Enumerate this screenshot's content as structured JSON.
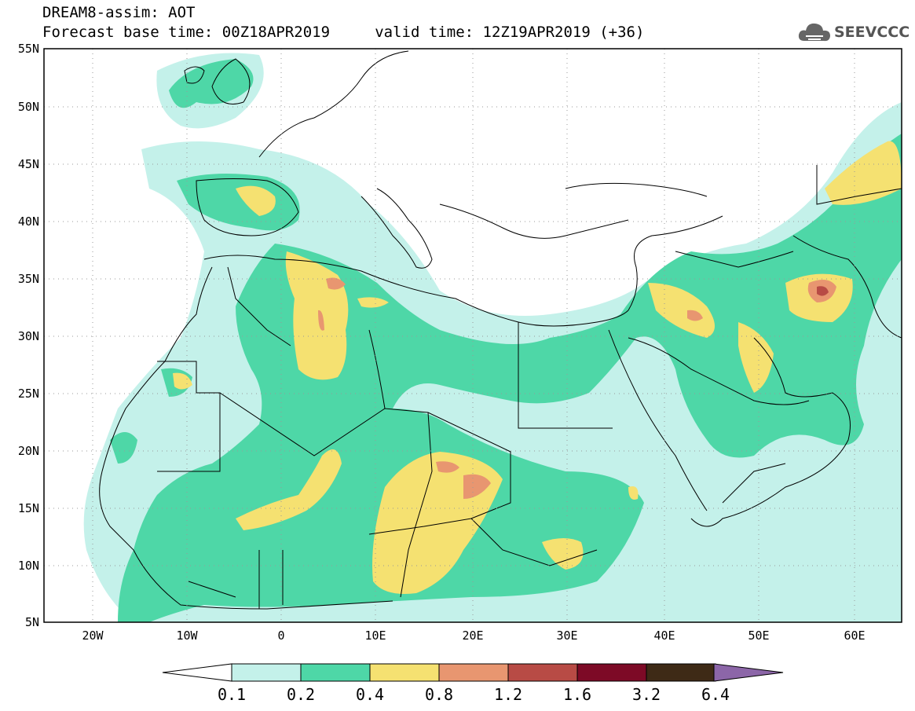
{
  "header": {
    "line1": "DREAM8-assim: AOT",
    "line2": "Forecast base time: 00Z18APR2019     valid time: 12Z19APR2019 (+36)"
  },
  "logo": {
    "text": "SEEVCCC",
    "icon": "cloud-icon"
  },
  "map": {
    "lat_labels": [
      "55N",
      "50N",
      "45N",
      "40N",
      "35N",
      "30N",
      "25N",
      "20N",
      "15N",
      "10N",
      "5N"
    ],
    "lon_labels": [
      "20W",
      "10W",
      "0",
      "10E",
      "20E",
      "30E",
      "40E",
      "50E",
      "60E"
    ]
  },
  "colorbar": {
    "levels": [
      "0.1",
      "0.2",
      "0.4",
      "0.8",
      "1.2",
      "1.6",
      "3.2",
      "6.4"
    ],
    "colors": [
      "#ffffff",
      "#c4f1ea",
      "#4ed7a7",
      "#f5e171",
      "#e89670",
      "#b84b45",
      "#7d0a26",
      "#3e2a16",
      "#8c66a8"
    ]
  },
  "colors": {
    "c01": "#c4f1ea",
    "c02": "#4ed7a7",
    "c04": "#f5e171",
    "c08": "#e89670",
    "c12": "#b84b45",
    "coast": "#000000"
  }
}
